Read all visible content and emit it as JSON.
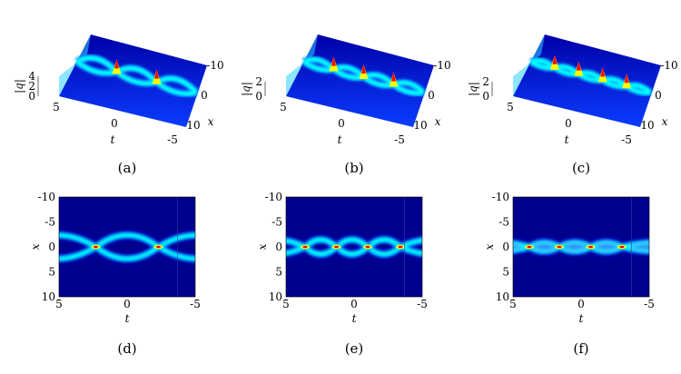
{
  "figure": {
    "panels_3d": [
      {
        "caption": "(a)",
        "zlabel": "|q|",
        "zticks": [
          "4",
          "2",
          "0"
        ],
        "tticks": [
          "5",
          "0",
          "-5"
        ],
        "tlabel": "t",
        "xticks": [
          "-10",
          "0",
          "10"
        ],
        "xlabel": "x"
      },
      {
        "caption": "(b)",
        "zlabel": "|q|",
        "zticks": [
          "2",
          "0"
        ],
        "tticks": [
          "5",
          "0",
          "-5"
        ],
        "tlabel": "t",
        "xticks": [
          "-10",
          "0",
          "10"
        ],
        "xlabel": "x"
      },
      {
        "caption": "(c)",
        "zlabel": "|q|",
        "zticks": [
          "2",
          "0"
        ],
        "tticks": [
          "5",
          "0",
          "-5"
        ],
        "tlabel": "t",
        "xticks": [
          "-10",
          "0",
          "10"
        ],
        "xlabel": "x"
      }
    ],
    "panels_2d": [
      {
        "caption": "(d)",
        "ylabel": "x",
        "yticks": [
          "-10",
          "-5",
          "0",
          "5",
          "10"
        ],
        "xlabel": "t",
        "xticks": [
          "5",
          "0",
          "-5"
        ],
        "collisions_t": [
          2.3,
          -2.3
        ],
        "mode": "wide"
      },
      {
        "caption": "(e)",
        "ylabel": "x",
        "yticks": [
          "-10",
          "-5",
          "0",
          "5",
          "10"
        ],
        "xlabel": "t",
        "xticks": [
          "5",
          "0",
          "-5"
        ],
        "collisions_t": [
          3.6,
          1.3,
          -1.0,
          -3.4
        ],
        "mode": "mid"
      },
      {
        "caption": "(f)",
        "ylabel": "x",
        "yticks": [
          "-10",
          "-5",
          "0",
          "5",
          "10"
        ],
        "xlabel": "t",
        "xticks": [
          "5",
          "0",
          "-5"
        ],
        "collisions_t": [
          3.8,
          1.6,
          -0.7,
          -3.0
        ],
        "mode": "narrow"
      }
    ]
  },
  "colors": {
    "background": "#00008f",
    "low": "#0000ff",
    "mid": "#00ffff",
    "high": "#ffff00",
    "peak": "#ff0000"
  }
}
